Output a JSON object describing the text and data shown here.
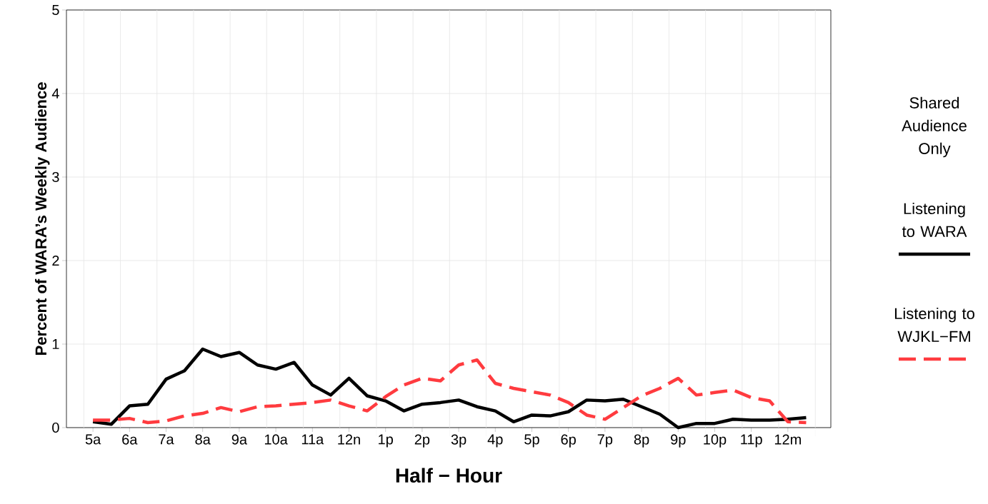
{
  "chart_data": {
    "type": "line",
    "ylabel": "Percent of WARA’s Weekly Audience",
    "xlabel": "Half − Hour",
    "legend_title": "Shared Audience Only",
    "categories": [
      "5a",
      null,
      "6a",
      null,
      "7a",
      null,
      "8a",
      null,
      "9a",
      null,
      "10a",
      null,
      "11a",
      null,
      "12n",
      null,
      "1p",
      null,
      "2p",
      null,
      "3p",
      null,
      "4p",
      null,
      "5p",
      null,
      "6p",
      null,
      "7p",
      null,
      "8p",
      null,
      "9p",
      null,
      "10p",
      null,
      "11p",
      null,
      "12m",
      null
    ],
    "series": [
      {
        "name": "Listening to WARA",
        "color": "#000000",
        "line_style": "solid",
        "values": [
          0.07,
          0.04,
          0.26,
          0.28,
          0.58,
          0.68,
          0.94,
          0.85,
          0.9,
          0.75,
          0.7,
          0.78,
          0.51,
          0.39,
          0.59,
          0.38,
          0.32,
          0.2,
          0.28,
          0.3,
          0.33,
          0.25,
          0.2,
          0.07,
          0.15,
          0.14,
          0.19,
          0.33,
          0.32,
          0.34,
          0.25,
          0.16,
          0.0,
          0.05,
          0.05,
          0.1,
          0.09,
          0.09,
          0.1,
          0.12
        ]
      },
      {
        "name": "Listening to WJKL−FM",
        "color": "#ff3b3f",
        "line_style": "dashed",
        "values": [
          0.09,
          0.09,
          0.11,
          0.06,
          0.08,
          0.14,
          0.17,
          0.24,
          0.19,
          0.25,
          0.26,
          0.28,
          0.3,
          0.33,
          0.26,
          0.2,
          0.37,
          0.51,
          0.59,
          0.56,
          0.75,
          0.81,
          0.53,
          0.47,
          0.43,
          0.39,
          0.3,
          0.15,
          0.1,
          0.24,
          0.38,
          0.47,
          0.59,
          0.39,
          0.42,
          0.45,
          0.36,
          0.32,
          0.07,
          0.06
        ]
      }
    ],
    "ylim": [
      0,
      5
    ],
    "yticks": [
      0,
      1,
      2,
      3,
      4,
      5
    ],
    "grid": true,
    "legend": "right",
    "marker": "none"
  }
}
